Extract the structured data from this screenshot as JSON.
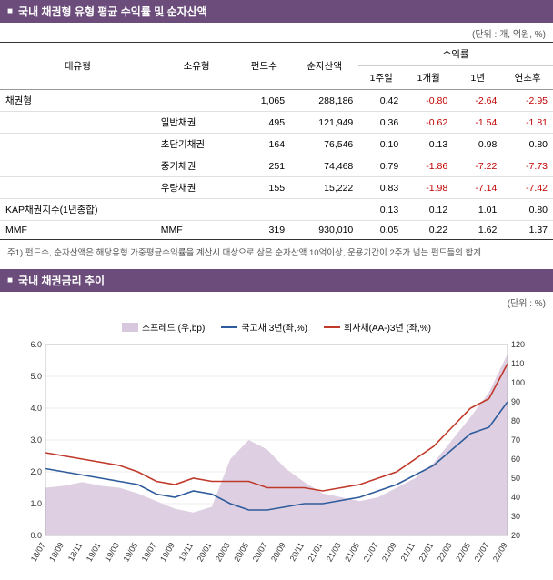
{
  "section1": {
    "title": "국내 채권형 유형 평균 수익률 및 순자산액",
    "unit": "(단위 : 개, 억원, %)"
  },
  "table": {
    "headers": {
      "col1": "대유형",
      "col2": "소유형",
      "col3": "펀드수",
      "col4": "순자산액",
      "group": "수익률",
      "sub1": "1주일",
      "sub2": "1개월",
      "sub3": "1년",
      "sub4": "연초후"
    },
    "rows": [
      {
        "c1": "채권형",
        "c2": "",
        "c3": "1,065",
        "c4": "288,186",
        "r1": "0.42",
        "r2": "-0.80",
        "r3": "-2.64",
        "r4": "-2.95",
        "n2": true,
        "n3": true,
        "n4": true
      },
      {
        "c1": "",
        "c2": "일반채권",
        "c3": "495",
        "c4": "121,949",
        "r1": "0.36",
        "r2": "-0.62",
        "r3": "-1.54",
        "r4": "-1.81",
        "n2": true,
        "n3": true,
        "n4": true
      },
      {
        "c1": "",
        "c2": "초단기채권",
        "c3": "164",
        "c4": "76,546",
        "r1": "0.10",
        "r2": "0.13",
        "r3": "0.98",
        "r4": "0.80"
      },
      {
        "c1": "",
        "c2": "중기채권",
        "c3": "251",
        "c4": "74,468",
        "r1": "0.79",
        "r2": "-1.86",
        "r3": "-7.22",
        "r4": "-7.73",
        "n2": true,
        "n3": true,
        "n4": true
      },
      {
        "c1": "",
        "c2": "우량채권",
        "c3": "155",
        "c4": "15,222",
        "r1": "0.83",
        "r2": "-1.98",
        "r3": "-7.14",
        "r4": "-7.42",
        "n2": true,
        "n3": true,
        "n4": true
      },
      {
        "c1": "KAP채권지수(1년종합)",
        "c2": "",
        "c3": "",
        "c4": "",
        "r1": "0.13",
        "r2": "0.12",
        "r3": "1.01",
        "r4": "0.80"
      },
      {
        "c1": "MMF",
        "c2": "MMF",
        "c3": "319",
        "c4": "930,010",
        "r1": "0.05",
        "r2": "0.22",
        "r3": "1.62",
        "r4": "1.37"
      }
    ]
  },
  "footnote": "주1) 펀드수, 순자산액은 해당유형 가중평균수익률을 계산시 대상으로 삼은 순자산액 10억이상, 운용기간이 2주가 넘는 펀드들의 합계",
  "section2": {
    "title": "국내 채권금리 추이",
    "unit": "(단위 : %)"
  },
  "chart": {
    "legend": {
      "spread": "스프레드 (우,bp)",
      "ktb": "국고채 3년(좌,%)",
      "corp": "회사채(AA-)3년 (좌,%)"
    },
    "colors": {
      "spread_fill": "#d8c8dd",
      "ktb": "#2e5b9c",
      "corp": "#c0392b",
      "grid": "#dddddd",
      "axis_text": "#333333"
    },
    "left_axis": {
      "min": 0,
      "max": 6,
      "step": 1,
      "ticks": [
        "0.0",
        "1.0",
        "2.0",
        "3.0",
        "4.0",
        "5.0",
        "6.0"
      ]
    },
    "right_axis": {
      "min": 20,
      "max": 120,
      "step": 10,
      "ticks": [
        "20",
        "30",
        "40",
        "50",
        "60",
        "70",
        "80",
        "90",
        "100",
        "110",
        "120"
      ]
    },
    "x_labels": [
      "18/07",
      "18/09",
      "18/11",
      "19/01",
      "19/03",
      "19/05",
      "19/07",
      "19/09",
      "19/11",
      "20/01",
      "20/03",
      "20/05",
      "20/07",
      "20/09",
      "20/11",
      "21/01",
      "21/03",
      "21/05",
      "21/07",
      "21/09",
      "21/11",
      "22/01",
      "22/03",
      "22/05",
      "22/07",
      "22/09"
    ],
    "spread_values": [
      45,
      46,
      48,
      46,
      45,
      42,
      38,
      34,
      32,
      35,
      60,
      70,
      65,
      55,
      48,
      42,
      40,
      38,
      40,
      45,
      50,
      58,
      70,
      82,
      95,
      115
    ],
    "ktb_values": [
      2.1,
      2.0,
      1.9,
      1.8,
      1.7,
      1.6,
      1.3,
      1.2,
      1.4,
      1.3,
      1.0,
      0.8,
      0.8,
      0.9,
      1.0,
      1.0,
      1.1,
      1.2,
      1.4,
      1.6,
      1.9,
      2.2,
      2.7,
      3.2,
      3.4,
      4.2
    ],
    "corp_values": [
      2.6,
      2.5,
      2.4,
      2.3,
      2.2,
      2.0,
      1.7,
      1.6,
      1.8,
      1.7,
      1.7,
      1.7,
      1.5,
      1.5,
      1.5,
      1.4,
      1.5,
      1.6,
      1.8,
      2.0,
      2.4,
      2.8,
      3.4,
      4.0,
      4.3,
      5.4
    ]
  }
}
